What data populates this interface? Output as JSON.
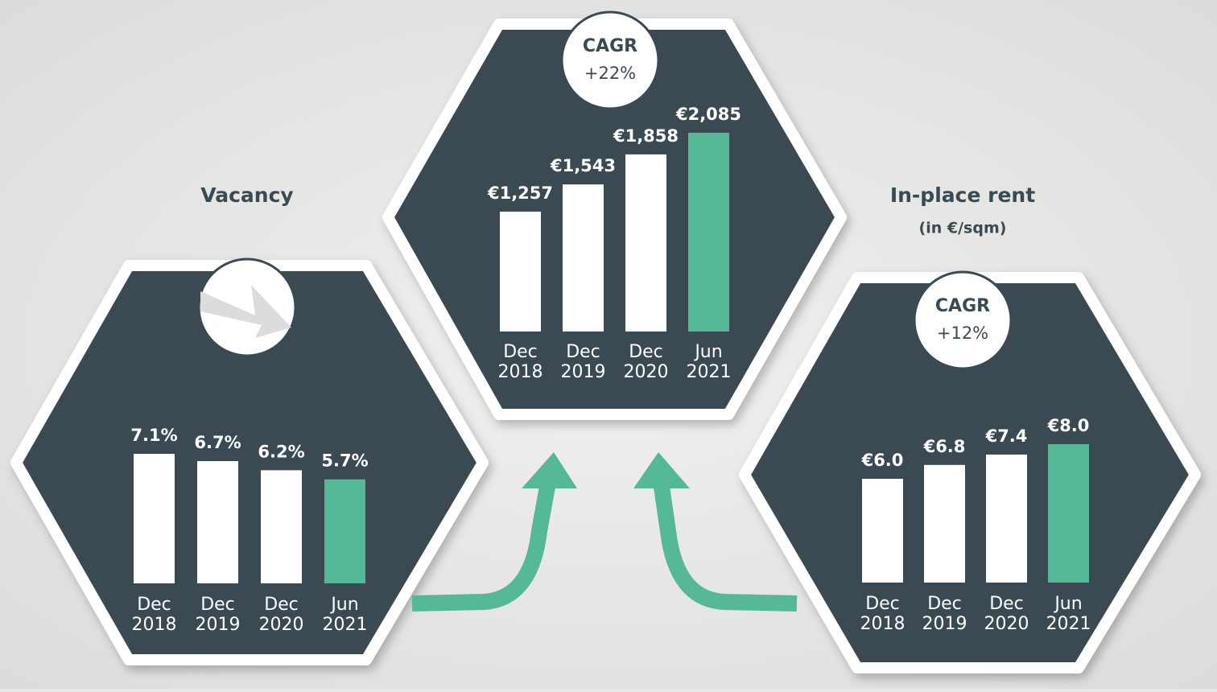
{
  "chart_data": [
    {
      "type": "bar",
      "title": "Vacancy",
      "categories": [
        "Dec 2018",
        "Dec 2019",
        "Dec 2020",
        "Jun 2021"
      ],
      "values": [
        7.1,
        6.7,
        6.2,
        5.7
      ],
      "value_labels": [
        "7.1%",
        "6.7%",
        "6.2%",
        "5.7%"
      ],
      "colors": [
        "#ffffff",
        "#ffffff",
        "#ffffff",
        "#55b896"
      ]
    },
    {
      "type": "bar",
      "badge_title": "CAGR",
      "badge_text": "+22%",
      "categories": [
        "Dec 2018",
        "Dec 2019",
        "Dec 2020",
        "Jun 2021"
      ],
      "values": [
        1257,
        1543,
        1858,
        2085
      ],
      "value_labels": [
        "€1,257",
        "€1,543",
        "€1,858",
        "€2,085"
      ],
      "colors": [
        "#ffffff",
        "#ffffff",
        "#ffffff",
        "#55b896"
      ]
    },
    {
      "type": "bar",
      "title": "In-place rent",
      "subtitle": "(in €/sqm)",
      "badge_title": "CAGR",
      "badge_text": "+12%",
      "categories": [
        "Dec 2018",
        "Dec 2019",
        "Dec 2020",
        "Jun 2021"
      ],
      "values": [
        6.0,
        6.8,
        7.4,
        8.0
      ],
      "value_labels": [
        "€6.0",
        "€6.8",
        "€7.4",
        "€8.0"
      ],
      "colors": [
        "#ffffff",
        "#ffffff",
        "#ffffff",
        "#55b896"
      ]
    }
  ]
}
